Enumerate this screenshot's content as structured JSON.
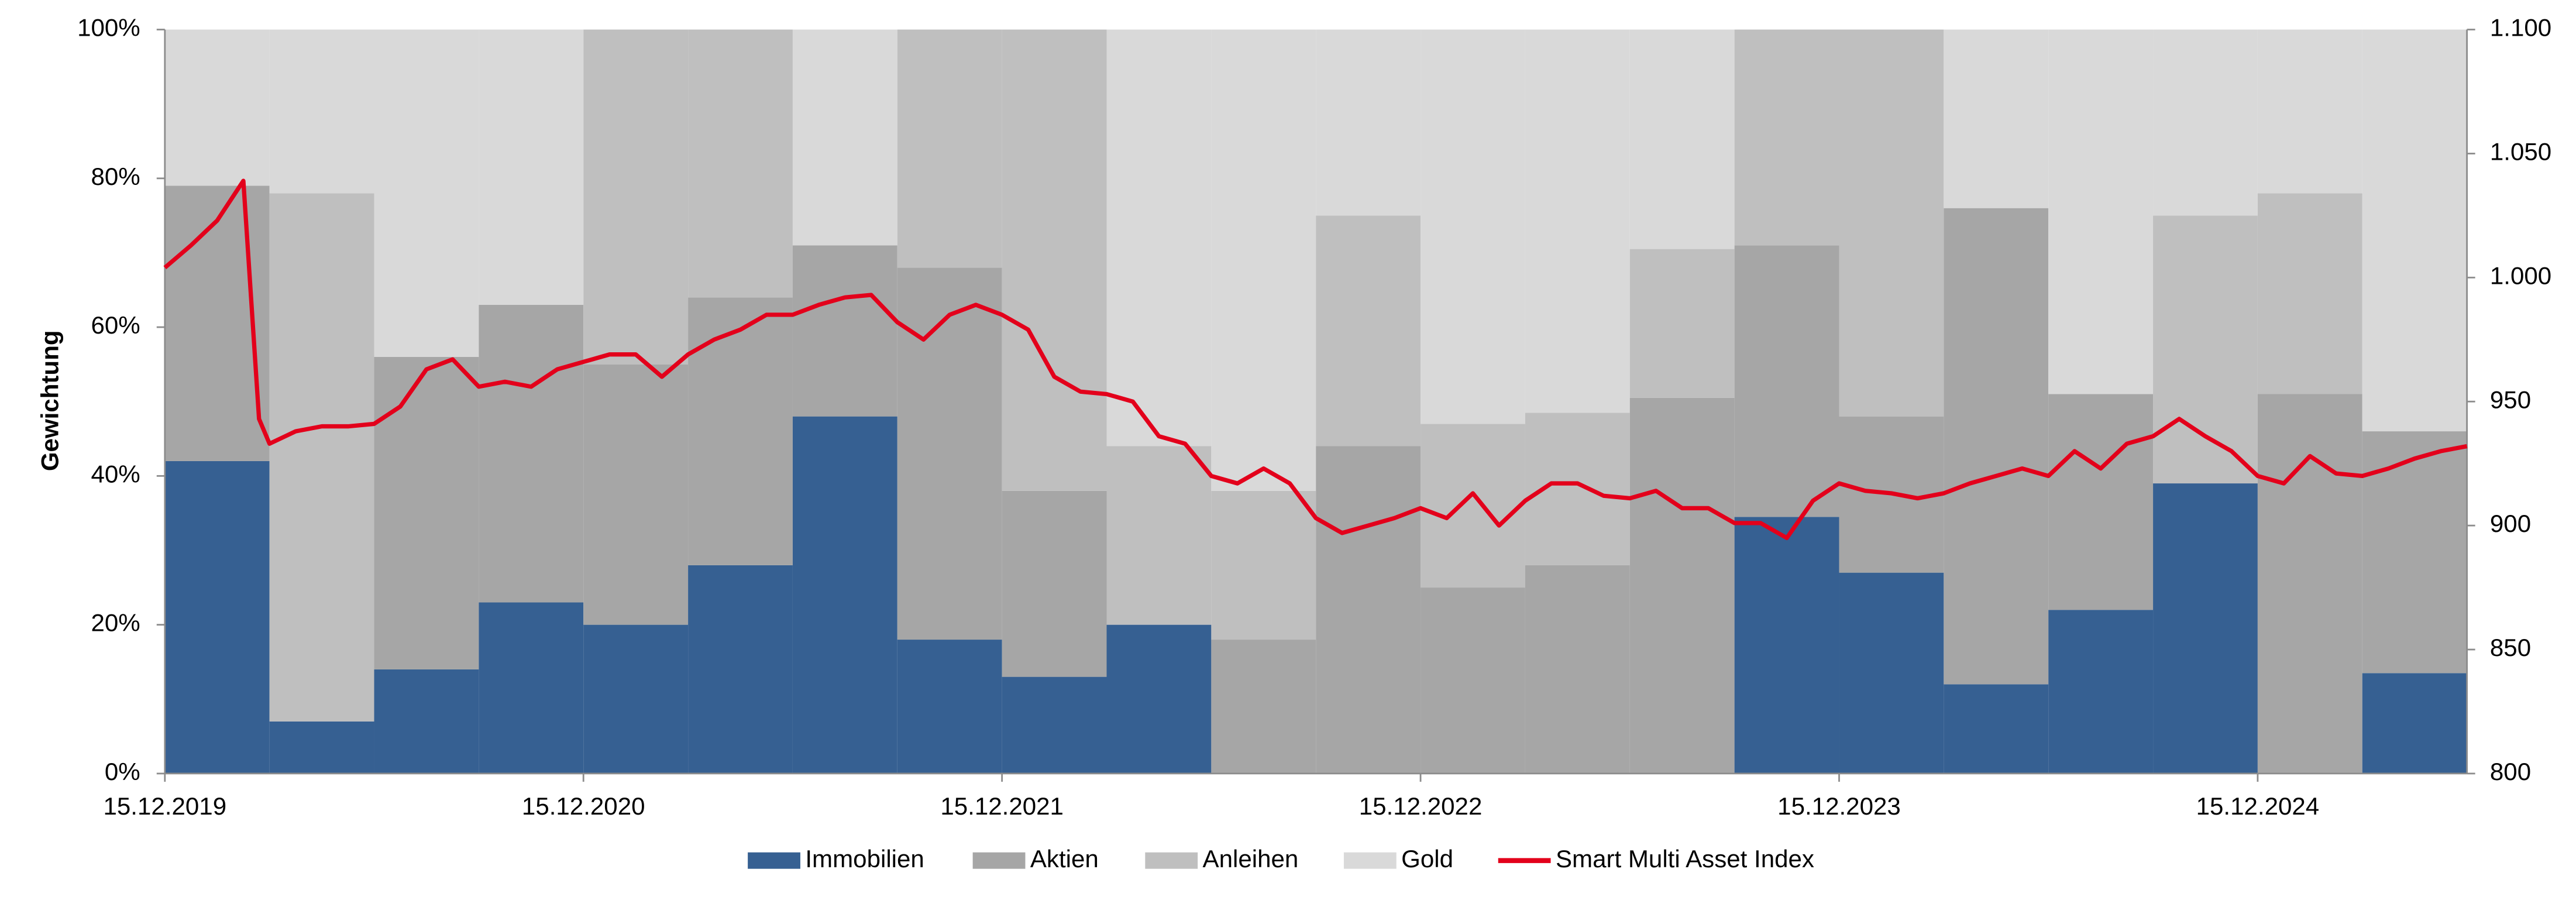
{
  "chart_data": {
    "type": "combo",
    "y_label": "Gewichtung",
    "xlim": [
      0,
      22
    ],
    "xticks": [
      {
        "value": 0,
        "label": "15.12.2019"
      },
      {
        "value": 4,
        "label": "15.12.2020"
      },
      {
        "value": 8,
        "label": "15.12.2021"
      },
      {
        "value": 12,
        "label": "15.12.2022"
      },
      {
        "value": 16,
        "label": "15.12.2023"
      },
      {
        "value": 20,
        "label": "15.12.2024"
      }
    ],
    "ylim": [
      0,
      100
    ],
    "yticks": [
      {
        "value": 0,
        "label": "0%"
      },
      {
        "value": 20,
        "label": "20%"
      },
      {
        "value": 40,
        "label": "40%"
      },
      {
        "value": 60,
        "label": "60%"
      },
      {
        "value": 80,
        "label": "80%"
      },
      {
        "value": 100,
        "label": "100%"
      }
    ],
    "y2lim": [
      800,
      1100
    ],
    "y2ticks": [
      800,
      850,
      900,
      950,
      {
        "value": 1000,
        "label": "1.000"
      },
      {
        "value": 1050,
        "label": "1.050"
      },
      {
        "value": 1100,
        "label": "1.100"
      }
    ],
    "x": [
      0,
      1,
      2,
      3,
      4,
      5,
      6,
      7,
      8,
      9,
      10,
      11,
      12,
      13,
      14,
      15,
      16,
      17,
      18,
      19,
      20,
      21
    ],
    "series": [
      {
        "name": "Immobilien",
        "type": "area",
        "color": "#366092",
        "values": [
          42,
          7,
          14,
          23,
          20,
          28,
          48,
          18,
          13,
          20,
          0,
          0,
          0,
          0,
          0,
          34.5,
          27,
          12,
          22,
          39,
          0,
          13.5
        ]
      },
      {
        "name": "Aktien",
        "type": "area",
        "color": "#a6a6a6",
        "values": [
          37,
          0,
          42,
          40,
          35,
          36,
          23,
          50,
          25,
          0,
          18,
          44,
          25,
          28,
          50.5,
          36.5,
          21,
          64,
          29,
          0,
          51,
          32.5
        ]
      },
      {
        "name": "Anleihen",
        "type": "area",
        "color": "#bfbfbf",
        "values": [
          0,
          71,
          0,
          0,
          45,
          36,
          0,
          32,
          62,
          24,
          20,
          31,
          22,
          20.5,
          20,
          29,
          52,
          0,
          0,
          36,
          27,
          0
        ]
      },
      {
        "name": "Gold",
        "type": "area",
        "color": "#d9d9d9",
        "values": [
          21,
          22,
          44,
          37,
          0,
          0,
          29,
          0,
          0,
          56,
          62,
          25,
          53,
          51.5,
          29.5,
          0,
          0,
          24,
          49,
          25,
          22,
          54
        ]
      },
      {
        "name": "Smart Multi Asset Index",
        "type": "line",
        "axis": "y2",
        "color": "#e3001b",
        "x": [
          0,
          0.25,
          0.5,
          0.75,
          0.9,
          1,
          1.25,
          1.5,
          1.75,
          2,
          2.25,
          2.5,
          2.75,
          3,
          3.25,
          3.5,
          3.75,
          4,
          4.25,
          4.5,
          4.75,
          5,
          5.25,
          5.5,
          5.75,
          6,
          6.25,
          6.5,
          6.75,
          7,
          7.25,
          7.5,
          7.75,
          8,
          8.25,
          8.5,
          8.75,
          9,
          9.25,
          9.5,
          9.75,
          10,
          10.25,
          10.5,
          10.75,
          11,
          11.25,
          11.5,
          11.75,
          12,
          12.25,
          12.5,
          12.75,
          13,
          13.25,
          13.5,
          13.75,
          14,
          14.25,
          14.5,
          14.75,
          15,
          15.25,
          15.5,
          15.75,
          16,
          16.25,
          16.5,
          16.75,
          17,
          17.25,
          17.5,
          17.75,
          18,
          18.25,
          18.5,
          18.75,
          19,
          19.25,
          19.5,
          19.75,
          20,
          20.25,
          20.5,
          20.75,
          21,
          21.25,
          21.5,
          21.75,
          22
        ],
        "values": [
          1004,
          1013,
          1023,
          1039,
          943,
          933,
          938,
          940,
          940,
          941,
          948,
          963,
          967,
          956,
          958,
          956,
          963,
          966,
          969,
          969,
          960,
          969,
          975,
          979,
          985,
          985,
          989,
          992,
          993,
          982,
          975,
          985,
          989,
          985,
          979,
          960,
          954,
          953,
          950,
          936,
          933,
          920,
          917,
          923,
          917,
          903,
          897,
          900,
          903,
          907,
          903,
          913,
          900,
          910,
          917,
          917,
          912,
          911,
          914,
          907,
          907,
          901,
          901,
          895,
          910,
          917,
          914,
          913,
          911,
          913,
          917,
          920,
          923,
          920,
          930,
          923,
          933,
          936,
          943,
          936,
          930,
          920,
          917,
          928,
          921,
          920,
          923,
          927,
          930,
          932
        ]
      }
    ]
  }
}
